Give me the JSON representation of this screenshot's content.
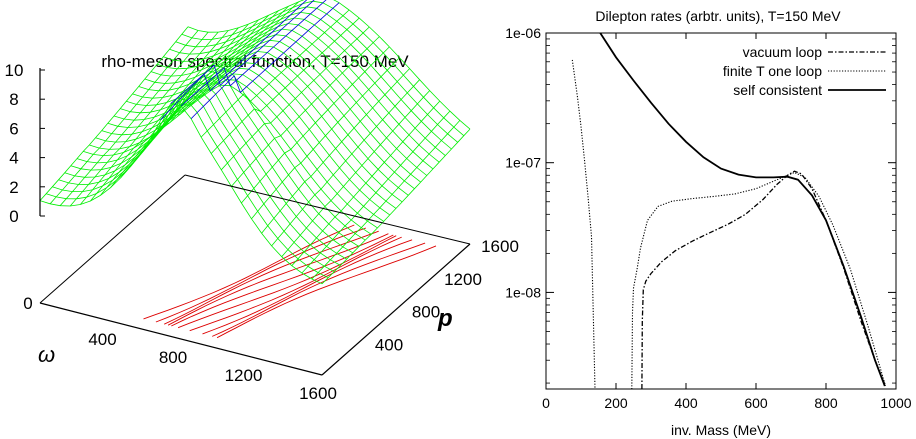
{
  "chart_data": [
    {
      "type": "surface",
      "title": "rho-meson spectral function, T=150 MeV",
      "xlabel": "ω",
      "ylabel": "p",
      "zlabel": "",
      "x_ticks": [
        "400",
        "800",
        "1200",
        "1600"
      ],
      "y_ticks": [
        "400",
        "800",
        "1200",
        "1600"
      ],
      "z_ticks": [
        "0",
        "2",
        "4",
        "6",
        "8",
        "10"
      ],
      "base_zero_label": "0",
      "xlim": [
        0,
        1600
      ],
      "ylim": [
        0,
        1600
      ],
      "zlim": [
        0,
        10
      ],
      "colors": {
        "surface": "#00ee00",
        "peak": "#0000dd",
        "contour": "#dd0000"
      },
      "grid": false
    },
    {
      "type": "line",
      "title": "Dilepton rates (arbtr. units), T=150 MeV",
      "xlabel": "inv. Mass (MeV)",
      "ylabel": "",
      "yscale": "log",
      "xlim": [
        0,
        1000
      ],
      "ylim": [
        1.8e-09,
        1e-06
      ],
      "x_ticks": [
        "0",
        "200",
        "400",
        "600",
        "800",
        "1000"
      ],
      "y_ticks": [
        {
          "value": 1e-06,
          "label": "1e-06"
        },
        {
          "value": 1e-07,
          "label": "1e-07"
        },
        {
          "value": 1e-08,
          "label": "1e-08"
        }
      ],
      "legend_position": "top-right",
      "grid": false,
      "series": [
        {
          "name": "vacuum loop",
          "style": "dash-dot",
          "x": [
            274,
            275,
            278,
            285,
            300,
            330,
            370,
            420,
            470,
            520,
            570,
            620,
            660,
            690,
            710,
            730,
            760,
            800,
            850,
            900,
            940,
            970
          ],
          "y": [
            1.8e-09,
            6e-09,
            1.05e-08,
            1.22e-08,
            1.4e-08,
            1.72e-08,
            2.1e-08,
            2.5e-08,
            2.9e-08,
            3.35e-08,
            4e-08,
            5.2e-08,
            6.8e-08,
            8e-08,
            8.6e-08,
            8.2e-08,
            6.3e-08,
            3.6e-08,
            1.55e-08,
            6e-09,
            3e-09,
            1.9e-09
          ]
        },
        {
          "name": "finite T one loop",
          "style": "dotted",
          "x": [
            75,
            80,
            90,
            100,
            110,
            120,
            130,
            140,
            245,
            247,
            250,
            260,
            270,
            290,
            320,
            360,
            420,
            480,
            540,
            600,
            650,
            690,
            710,
            740,
            780,
            820,
            870,
            920,
            970
          ],
          "y": [
            6.2e-07,
            5e-07,
            3.2e-07,
            1.9e-07,
            1.05e-07,
            5.5e-08,
            2.7e-08,
            1.8e-09,
            1.8e-09,
            7e-09,
            1.08e-08,
            1.5e-08,
            2.2e-08,
            3.6e-08,
            4.6e-08,
            5.05e-08,
            5.3e-08,
            5.5e-08,
            5.75e-08,
            6.3e-08,
            7.2e-08,
            8e-08,
            8.4e-08,
            7.7e-08,
            5.5e-08,
            3.3e-08,
            1.5e-08,
            5.5e-09,
            1.9e-09
          ]
        },
        {
          "name": "self consistent",
          "style": "solid",
          "x": [
            150,
            200,
            250,
            300,
            350,
            400,
            450,
            500,
            550,
            600,
            650,
            690,
            720,
            760,
            800,
            850,
            900,
            940,
            968
          ],
          "y": [
            1.05e-06,
            6.5e-07,
            4.3e-07,
            2.9e-07,
            2e-07,
            1.45e-07,
            1.1e-07,
            9e-08,
            8.1e-08,
            7.7e-08,
            7.7e-08,
            7.8e-08,
            7.4e-08,
            5.6e-08,
            3.6e-08,
            1.6e-08,
            6.5e-09,
            3e-09,
            1.9e-09
          ]
        }
      ]
    }
  ]
}
